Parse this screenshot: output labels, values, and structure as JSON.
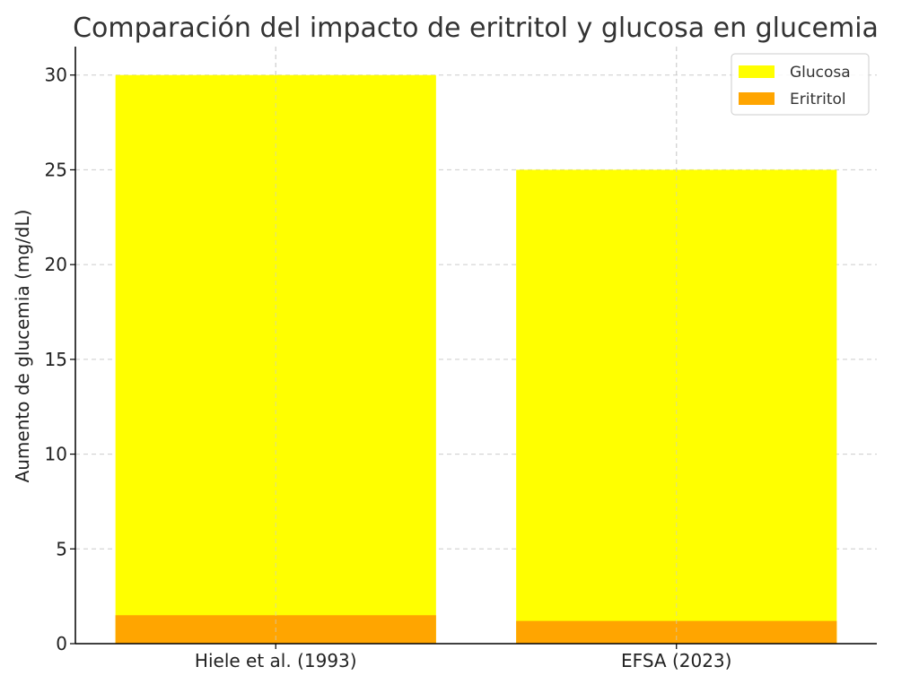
{
  "chart_data": {
    "type": "bar",
    "stacking": "overlaid",
    "title": "Comparación del impacto de eritritol y glucosa en glucemia",
    "xlabel": "",
    "ylabel": "Aumento de glucemia (mg/dL)",
    "categories": [
      "Hiele et al. (1993)",
      "EFSA (2023)"
    ],
    "ylim": [
      0,
      31.5
    ],
    "yticks": [
      "0",
      "5",
      "10",
      "15",
      "20",
      "25",
      "30"
    ],
    "grid": true,
    "legend_position": "top-right",
    "series": [
      {
        "name": "Glucosa",
        "values": [
          30,
          25
        ],
        "color": "#ffff00"
      },
      {
        "name": "Eritritol",
        "values": [
          1.5,
          1.2
        ],
        "color": "#ffa500"
      }
    ]
  }
}
